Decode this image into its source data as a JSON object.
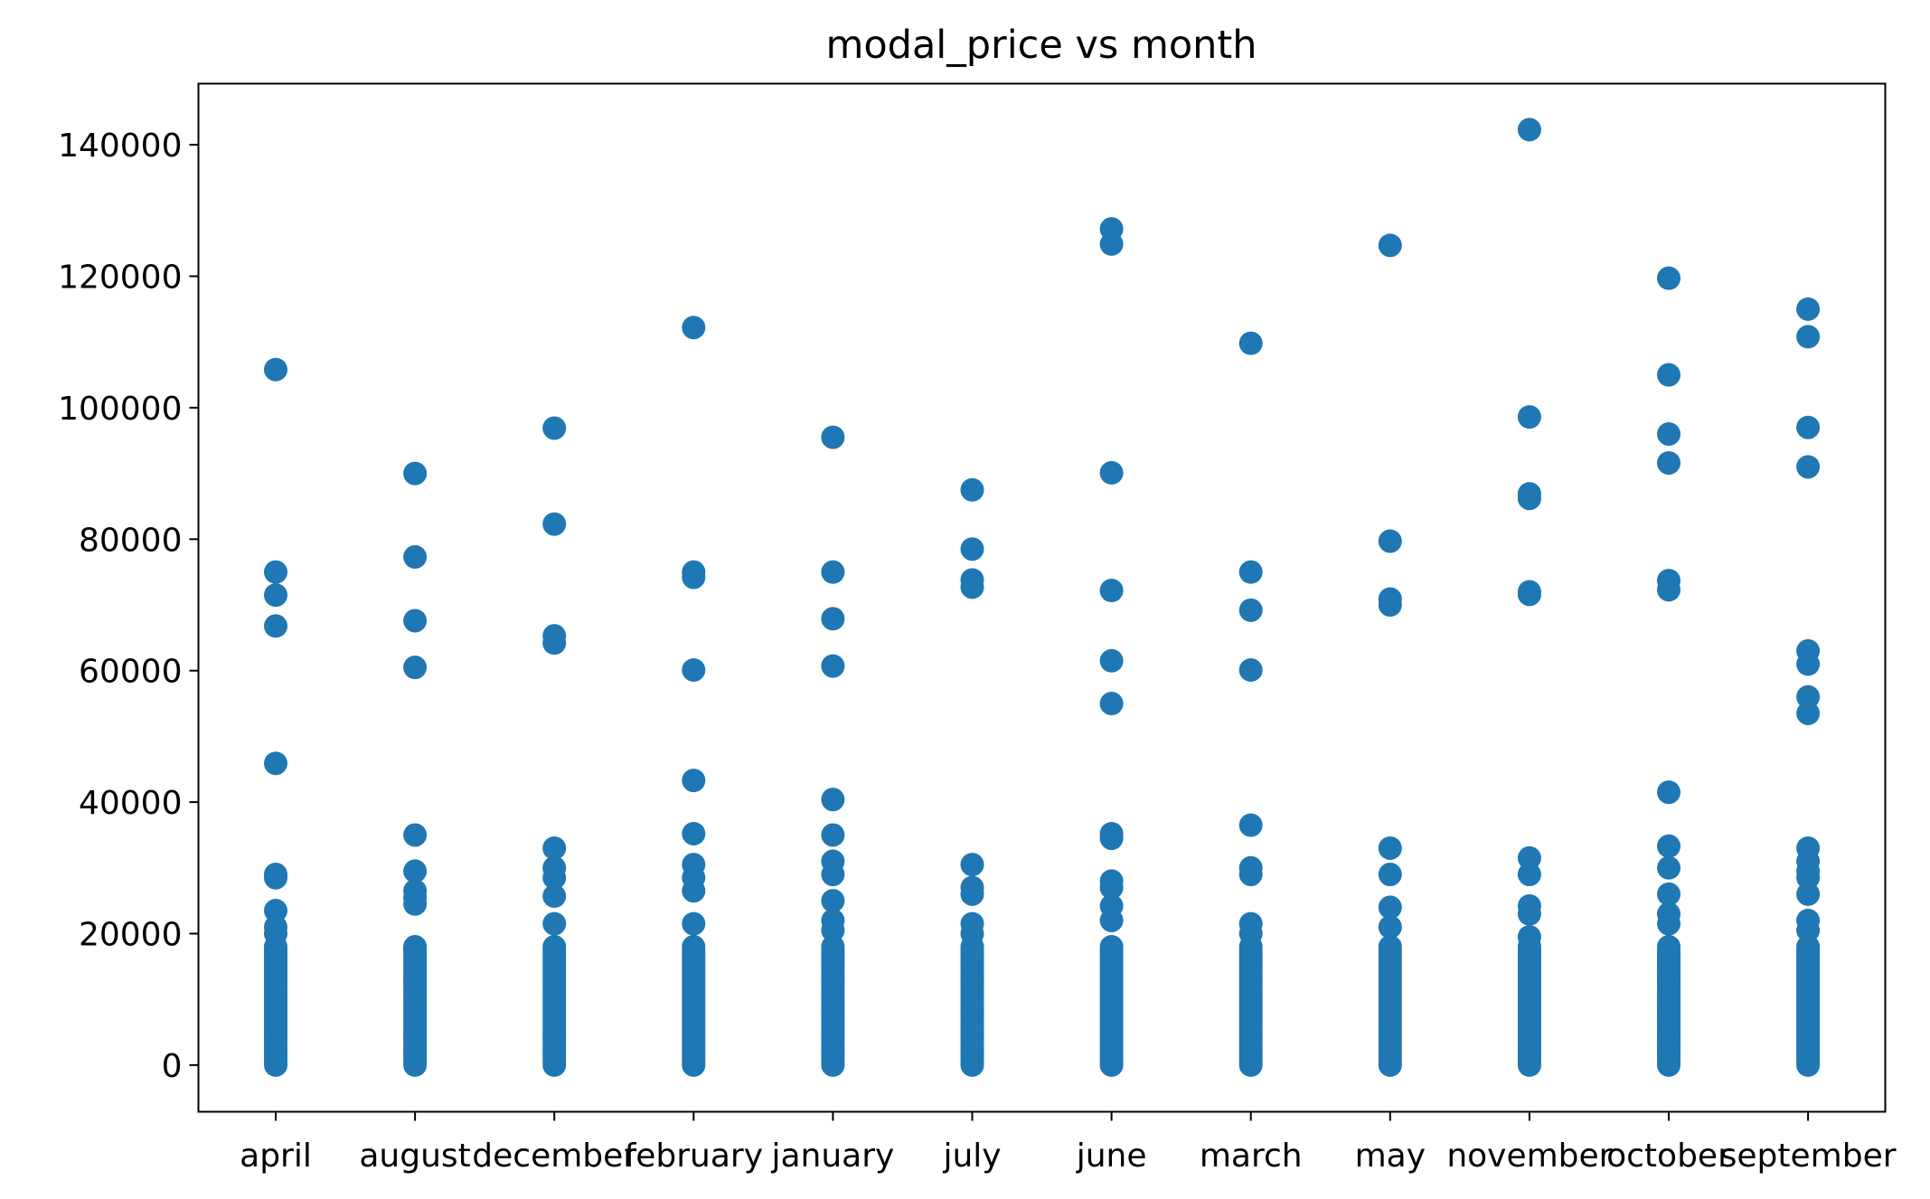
{
  "chart_data": {
    "type": "scatter",
    "title": "modal_price vs month",
    "xlabel": "",
    "ylabel": "",
    "categories": [
      "april",
      "august",
      "december",
      "february",
      "january",
      "july",
      "june",
      "march",
      "may",
      "november",
      "october",
      "september"
    ],
    "yticks": [
      0,
      20000,
      40000,
      60000,
      80000,
      100000,
      120000,
      140000
    ],
    "ytick_labels": [
      "0",
      "20000",
      "40000",
      "60000",
      "80000",
      "100000",
      "120000",
      "140000"
    ],
    "ylim": [
      -7100,
      149300
    ],
    "grid": false,
    "legend": "none",
    "marker_color": "#1f77b4",
    "dense_band": {
      "low": 0,
      "high": 18000,
      "step": 500
    },
    "outliers": {
      "april": [
        105800,
        75000,
        71500,
        66800,
        45900,
        29000,
        28500,
        23500,
        21000,
        20000
      ],
      "august": [
        90000,
        77300,
        67600,
        60500,
        35000,
        29500,
        26500,
        25500,
        24500,
        17800
      ],
      "december": [
        96900,
        82300,
        65300,
        64200,
        33000,
        30000,
        28500,
        25700,
        21500
      ],
      "february": [
        112200,
        75000,
        74200,
        60100,
        43300,
        35200,
        30500,
        28500,
        26500,
        21500
      ],
      "january": [
        95500,
        75000,
        67900,
        60700,
        40400,
        35000,
        31000,
        29000,
        25000,
        22000,
        20500
      ],
      "july": [
        87500,
        78500,
        73800,
        72700,
        30500,
        27000,
        26000,
        21500,
        20000
      ],
      "june": [
        127200,
        124900,
        90100,
        72200,
        61500,
        55000,
        35200,
        34500,
        28000,
        27000,
        24200,
        22000
      ],
      "march": [
        109800,
        75000,
        69200,
        60100,
        36500,
        30000,
        29000,
        21500,
        20000
      ],
      "may": [
        124700,
        79700,
        70900,
        70000,
        33000,
        29000,
        24000,
        21000
      ],
      "november": [
        142300,
        98600,
        86900,
        86200,
        72000,
        71600,
        31500,
        29000,
        24200,
        23000,
        19500
      ],
      "october": [
        119700,
        105000,
        96000,
        91600,
        73700,
        72300,
        41500,
        33300,
        30000,
        26000,
        23000,
        21500
      ],
      "september": [
        115000,
        110800,
        97000,
        91000,
        63000,
        61000,
        56000,
        53500,
        33000,
        31000,
        29500,
        28500,
        26000,
        22000,
        20500
      ]
    }
  }
}
